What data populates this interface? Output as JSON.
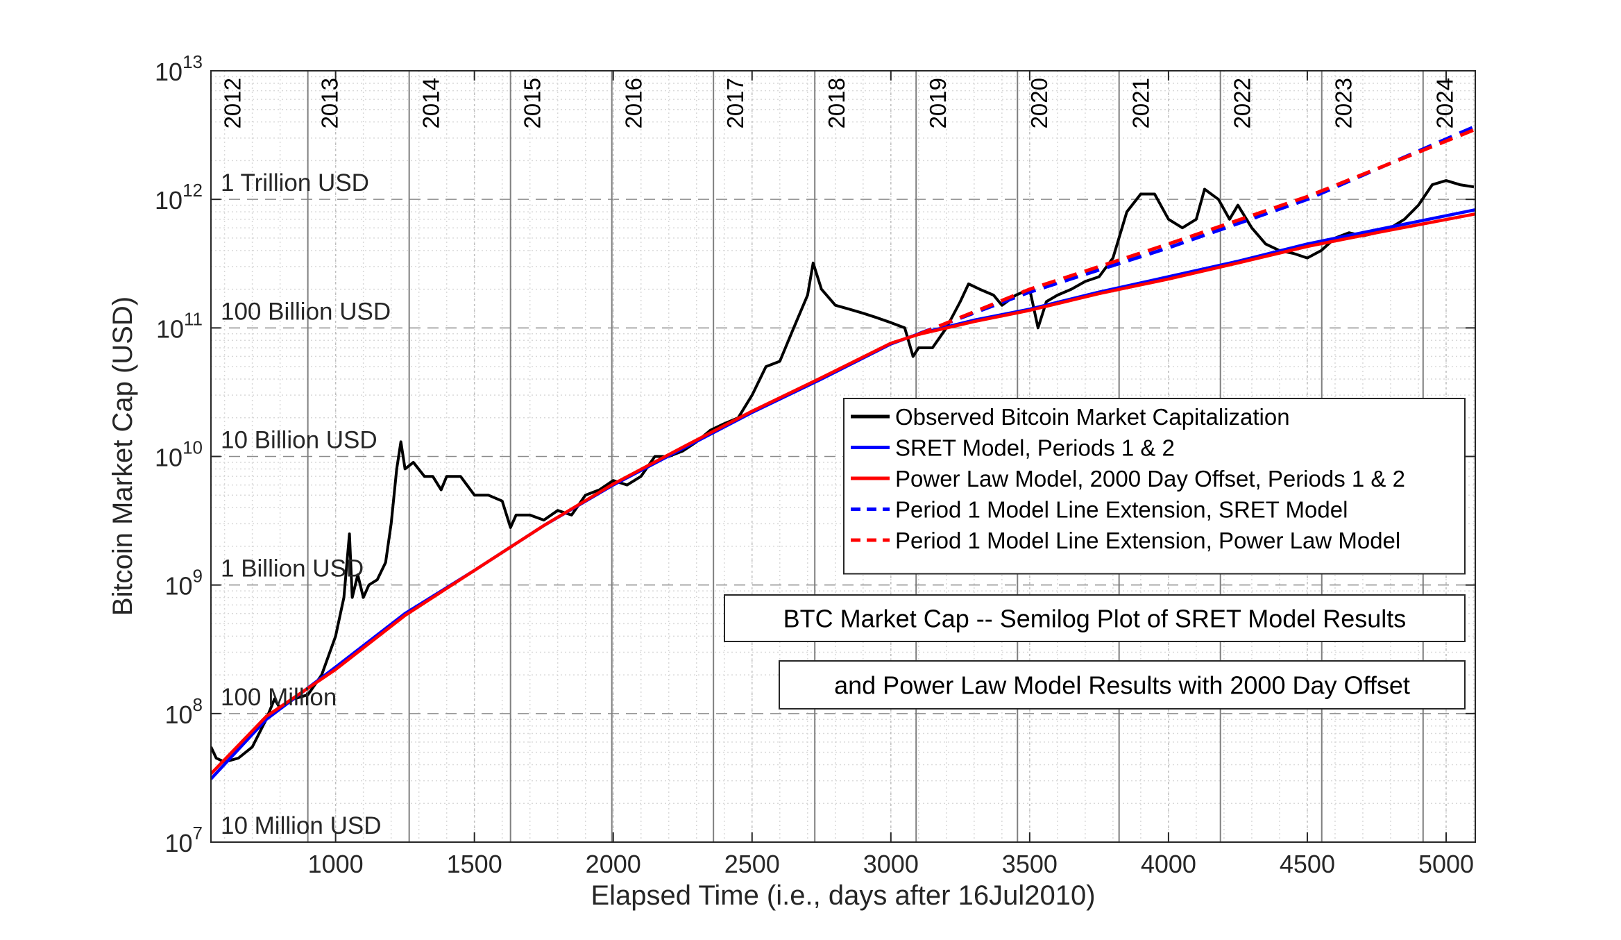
{
  "chart_data": {
    "type": "line",
    "xlabel": "Elapsed Time (i.e., days after 16Jul2010)",
    "ylabel": "Bitcoin Market Cap (USD)",
    "log_y": true,
    "grid": true,
    "minor_grid": true,
    "legend": "east",
    "xlim": [
      551,
      5105
    ],
    "ylim": [
      10000000,
      10000000000000
    ],
    "xticks": [
      1000,
      1500,
      2000,
      2500,
      3000,
      3500,
      4000,
      4500,
      5000
    ],
    "yticks": [
      {
        "value": 10000000,
        "label": "10^7"
      },
      {
        "value": 100000000,
        "label": "10^8"
      },
      {
        "value": 1000000000,
        "label": "10^9"
      },
      {
        "value": 10000000000,
        "label": "10^10"
      },
      {
        "value": 100000000000,
        "label": "10^11"
      },
      {
        "value": 1000000000000,
        "label": "10^12"
      },
      {
        "value": 10000000000000,
        "label": "10^13"
      }
    ],
    "year_markers": [
      {
        "value": 534,
        "label": "2012"
      },
      {
        "value": 900,
        "label": "2013"
      },
      {
        "value": 1265,
        "label": "2014"
      },
      {
        "value": 1630,
        "label": "2015"
      },
      {
        "value": 1995,
        "label": "2016"
      },
      {
        "value": 2361,
        "label": "2017"
      },
      {
        "value": 2726,
        "label": "2018"
      },
      {
        "value": 3091,
        "label": "2019"
      },
      {
        "value": 3456,
        "label": "2020"
      },
      {
        "value": 3822,
        "label": "2021"
      },
      {
        "value": 4187,
        "label": "2022"
      },
      {
        "value": 4552,
        "label": "2023"
      },
      {
        "value": 4917,
        "label": "2024"
      }
    ],
    "annotations": [
      {
        "value": 1000000000000,
        "label": "1 Trillion USD"
      },
      {
        "value": 100000000000,
        "label": "100 Billion USD"
      },
      {
        "value": 10000000000,
        "label": "10 Billion USD"
      },
      {
        "value": 1000000000,
        "label": "1 Billion USD"
      },
      {
        "value": 100000000,
        "label": "100 Million"
      },
      {
        "value": 10000000,
        "label": "10 Million USD"
      }
    ],
    "text_boxes": [
      "BTC Market Cap -- Semilog Plot of SRET Model Results",
      "and Power Law Model Results with 2000 Day Offset"
    ],
    "series": [
      {
        "name": "Observed Bitcoin Market Capitalization",
        "color": "#000000",
        "dash": false,
        "x": [
          551,
          570,
          600,
          650,
          700,
          750,
          780,
          800,
          850,
          900,
          950,
          1000,
          1030,
          1050,
          1060,
          1080,
          1100,
          1120,
          1150,
          1180,
          1200,
          1220,
          1235,
          1250,
          1280,
          1320,
          1350,
          1380,
          1400,
          1450,
          1500,
          1550,
          1600,
          1630,
          1650,
          1700,
          1750,
          1800,
          1850,
          1900,
          1950,
          2000,
          2050,
          2100,
          2150,
          2200,
          2250,
          2300,
          2350,
          2400,
          2450,
          2500,
          2550,
          2600,
          2650,
          2700,
          2720,
          2750,
          2800,
          2850,
          2900,
          2950,
          3000,
          3050,
          3080,
          3100,
          3150,
          3200,
          3250,
          3280,
          3320,
          3370,
          3400,
          3450,
          3500,
          3530,
          3560,
          3600,
          3650,
          3700,
          3750,
          3800,
          3850,
          3900,
          3950,
          4000,
          4050,
          4100,
          4130,
          4180,
          4220,
          4250,
          4300,
          4350,
          4400,
          4450,
          4500,
          4550,
          4600,
          4650,
          4700,
          4750,
          4800,
          4850,
          4900,
          4950,
          5000,
          5050,
          5100
        ],
        "values": [
          55000000,
          45000000,
          42000000,
          45000000,
          55000000,
          90000000,
          130000000,
          110000000,
          130000000,
          140000000,
          200000000,
          400000000,
          800000000,
          2500000000,
          800000000,
          1200000000,
          800000000,
          1000000000,
          1100000000,
          1500000000,
          3000000000,
          8000000000,
          13000000000,
          8000000000,
          9000000000,
          7000000000,
          7000000000,
          5500000000,
          7000000000,
          7000000000,
          5000000000,
          5000000000,
          4500000000,
          2800000000,
          3500000000,
          3500000000,
          3200000000,
          3800000000,
          3500000000,
          5000000000,
          5500000000,
          6500000000,
          6000000000,
          7000000000,
          10000000000,
          10000000000,
          11000000000,
          13000000000,
          16000000000,
          18000000000,
          20000000000,
          30000000000,
          50000000000,
          55000000000,
          100000000000,
          180000000000,
          320000000000,
          200000000000,
          150000000000,
          140000000000,
          130000000000,
          120000000000,
          110000000000,
          100000000000,
          60000000000,
          70000000000,
          70000000000,
          100000000000,
          160000000000,
          220000000000,
          200000000000,
          180000000000,
          150000000000,
          180000000000,
          200000000000,
          100000000000,
          160000000000,
          180000000000,
          200000000000,
          230000000000,
          250000000000,
          350000000000,
          800000000000,
          1100000000000,
          1100000000000,
          700000000000,
          600000000000,
          700000000000,
          1200000000000,
          1000000000000,
          700000000000,
          900000000000,
          600000000000,
          450000000000,
          400000000000,
          380000000000,
          350000000000,
          400000000000,
          500000000000,
          550000000000,
          520000000000,
          550000000000,
          600000000000,
          700000000000,
          900000000000,
          1300000000000,
          1400000000000,
          1300000000000,
          1250000000000
        ]
      },
      {
        "name": "SRET Model, Periods 1 & 2",
        "color": "#0000ff",
        "dash": false,
        "x": [
          551,
          750,
          1000,
          1250,
          1500,
          1750,
          2000,
          2250,
          2500,
          2750,
          3000,
          3100,
          3300,
          3500,
          3750,
          4000,
          4250,
          4500,
          4750,
          5105
        ],
        "values": [
          31000000,
          90000000,
          230000000,
          600000000,
          1300000000,
          2900000000,
          6000000000,
          11500000000,
          22000000000,
          40000000000,
          75000000000,
          90000000000,
          115000000000,
          140000000000,
          190000000000,
          250000000000,
          330000000000,
          450000000000,
          580000000000,
          830000000000
        ]
      },
      {
        "name": "Power Law Model, 2000 Day Offset, Periods 1 & 2",
        "color": "#ff0000",
        "dash": false,
        "x": [
          551,
          750,
          1000,
          1250,
          1500,
          1750,
          2000,
          2250,
          2500,
          2750,
          3000,
          3100,
          3300,
          3500,
          3750,
          4000,
          4250,
          4500,
          4750,
          5105
        ],
        "values": [
          34000000,
          95000000,
          220000000,
          580000000,
          1300000000,
          2900000000,
          6100000000,
          11800000000,
          22500000000,
          41000000000,
          76000000000,
          89000000000,
          112000000000,
          137000000000,
          185000000000,
          240000000000,
          320000000000,
          430000000000,
          550000000000,
          770000000000
        ]
      },
      {
        "name": "Period 1 Model Line Extension, SRET Model",
        "color": "#0000ff",
        "dash": true,
        "x": [
          3100,
          3500,
          4000,
          4500,
          5105
        ],
        "values": [
          90000000000,
          190000000000,
          420000000000,
          1000000000000,
          3700000000000
        ]
      },
      {
        "name": "Period 1 Model Line Extension, Power Law Model",
        "color": "#ff0000",
        "dash": true,
        "x": [
          3100,
          3500,
          4000,
          4500,
          5105
        ],
        "values": [
          89000000000,
          200000000000,
          450000000000,
          1050000000000,
          3500000000000
        ]
      }
    ]
  }
}
